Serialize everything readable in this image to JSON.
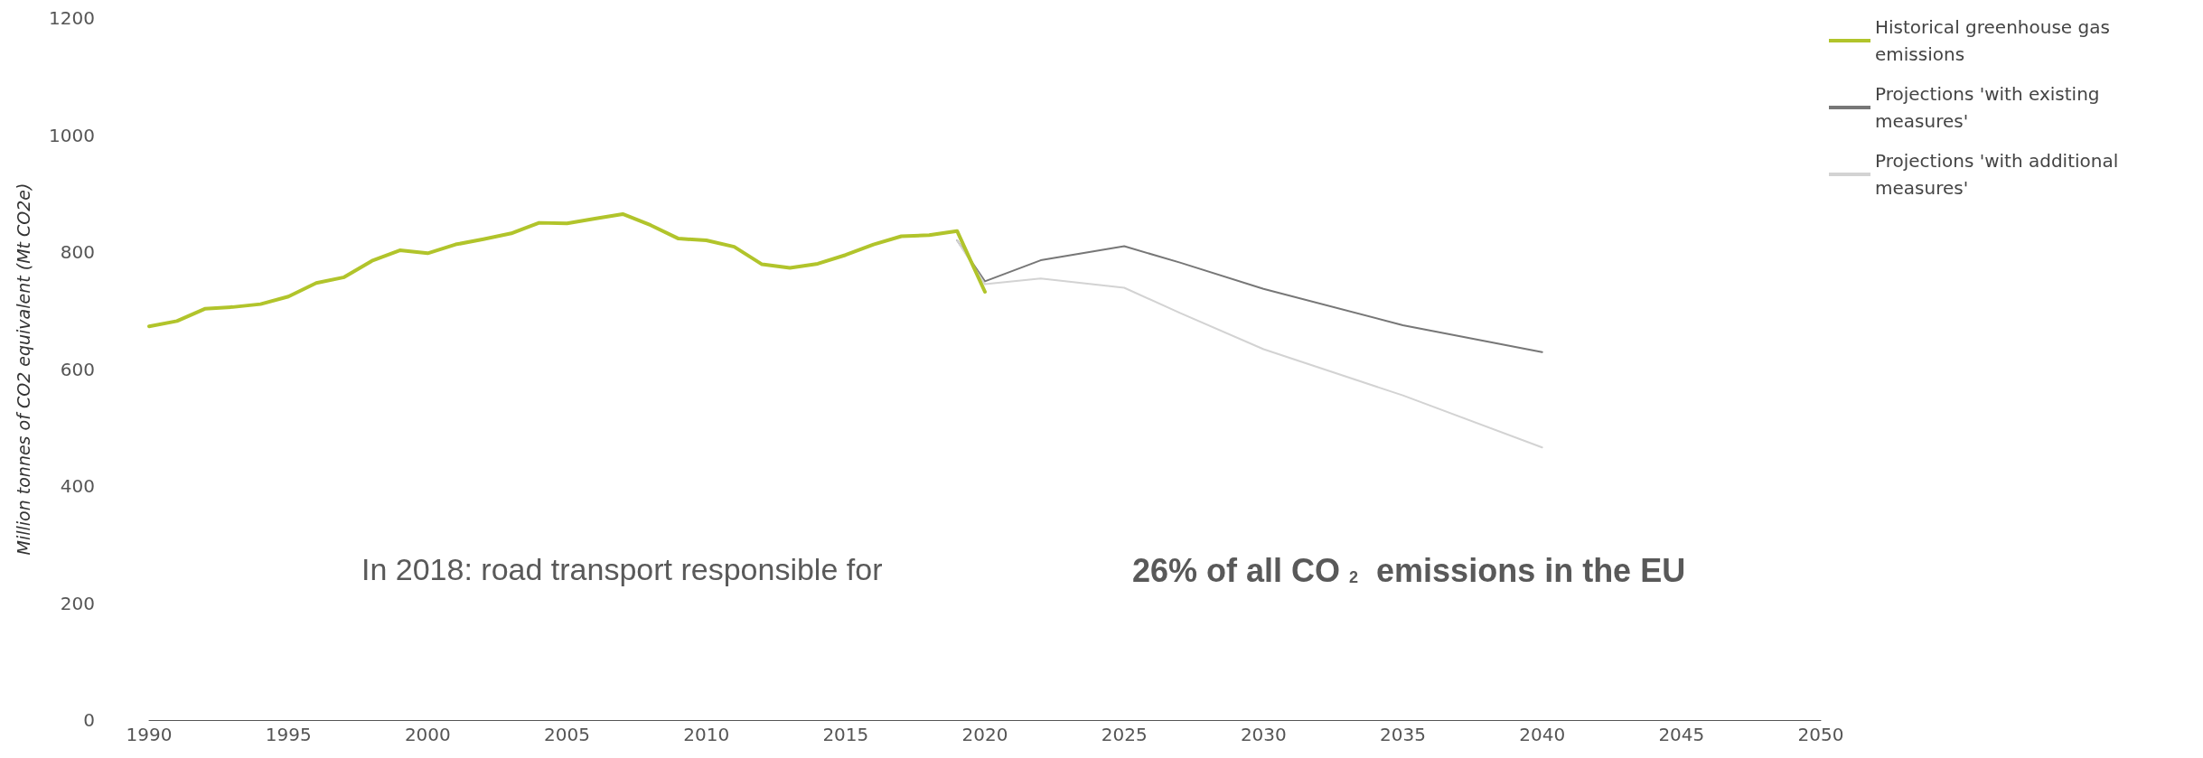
{
  "chart_data": {
    "type": "line",
    "ylabel": "Million tonnes of CO2 equivalent (Mt CO2e)",
    "xlim": [
      1990,
      2050
    ],
    "xticks": [
      1990,
      1995,
      2000,
      2005,
      2010,
      2015,
      2020,
      2025,
      2030,
      2035,
      2040,
      2045,
      2050
    ],
    "ylim": [
      0,
      1200
    ],
    "yticks": [
      0,
      200,
      400,
      600,
      800,
      1000,
      1200
    ],
    "grid": false,
    "legend": "top right",
    "marker": "none",
    "line_style": "solid",
    "series": [
      {
        "name": "Historical greenhouse gas emissions",
        "color": "#b1c42b",
        "x": [
          1990,
          1991,
          1992,
          1993,
          1994,
          1995,
          1996,
          1997,
          1998,
          1999,
          2000,
          2001,
          2002,
          2003,
          2004,
          2005,
          2006,
          2007,
          2008,
          2009,
          2010,
          2011,
          2012,
          2013,
          2014,
          2015,
          2016,
          2017,
          2018,
          2019,
          2020
        ],
        "values": [
          673,
          682,
          703,
          706,
          711,
          724,
          747,
          757,
          785,
          803,
          798,
          813,
          822,
          832,
          850,
          849,
          857,
          865,
          846,
          823,
          820,
          809,
          779,
          773,
          780,
          795,
          813,
          827,
          829,
          836,
          732
        ]
      },
      {
        "name": "Projections 'with existing measures'",
        "color": "#777777",
        "x": [
          2019,
          2020,
          2022,
          2025,
          2027,
          2030,
          2035,
          2040
        ],
        "values": [
          820,
          750,
          786,
          810,
          782,
          737,
          675,
          629
        ]
      },
      {
        "name": "Projections 'with additional measures'",
        "color": "#d3d3d3",
        "x": [
          2019,
          2020,
          2022,
          2025,
          2027,
          2030,
          2035,
          2040
        ],
        "values": [
          820,
          745,
          755,
          739,
          696,
          634,
          555,
          466
        ]
      }
    ],
    "annotations": [
      "In 2018: road transport responsible for",
      "26% of all CO$_{2}$ emissions in the EU"
    ]
  }
}
